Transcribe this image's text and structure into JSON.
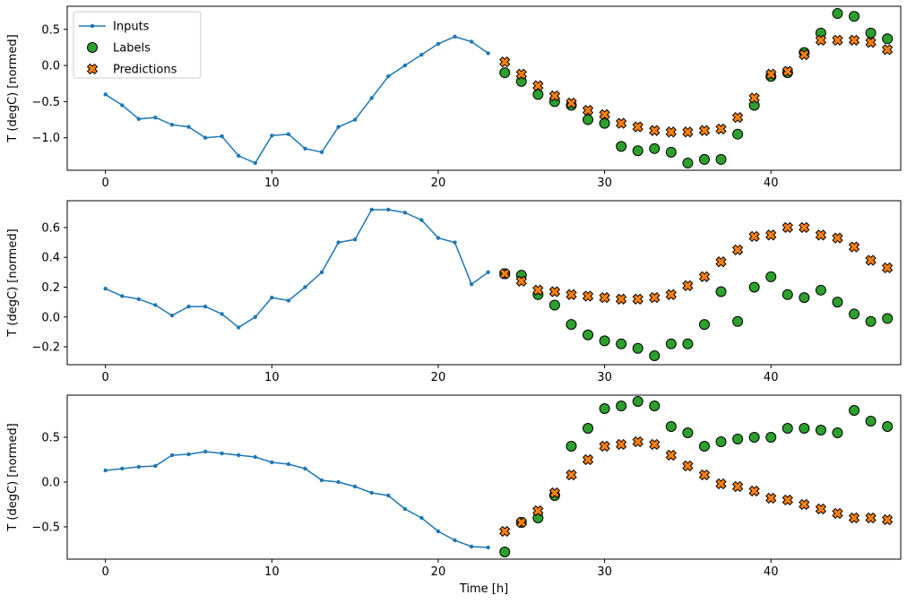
{
  "figure": {
    "background": "#ffffff",
    "spine_color": "#000000",
    "legend": {
      "position": "upper-left",
      "entries": [
        {
          "label": "Inputs",
          "marker": "line-dot",
          "color": "#1f77b4"
        },
        {
          "label": "Labels",
          "marker": "circle",
          "color": "#2ca02c"
        },
        {
          "label": "Predictions",
          "marker": "x",
          "color": "#ff7f0e"
        }
      ]
    }
  },
  "chart_data": [
    {
      "type": "line+scatter",
      "title": "",
      "ylabel": "T (degC) [normed]",
      "xlabel": "",
      "xlim": [
        -2.3,
        47.8
      ],
      "ylim": [
        -1.45,
        0.82
      ],
      "xticks": [
        0,
        10,
        20,
        30,
        40
      ],
      "yticks": [
        0.5,
        0.0,
        -0.5,
        -1.0
      ],
      "grid": false,
      "series": [
        {
          "name": "Inputs",
          "type": "line",
          "color": "#1f77b4",
          "x": [
            0,
            1,
            2,
            3,
            4,
            5,
            6,
            7,
            8,
            9,
            10,
            11,
            12,
            13,
            14,
            15,
            16,
            17,
            18,
            19,
            20,
            21,
            22,
            23
          ],
          "y": [
            -0.4,
            -0.55,
            -0.74,
            -0.72,
            -0.82,
            -0.85,
            -1.0,
            -0.98,
            -1.25,
            -1.35,
            -0.97,
            -0.95,
            -1.15,
            -1.2,
            -0.85,
            -0.75,
            -0.45,
            -0.15,
            0.0,
            0.15,
            0.3,
            0.4,
            0.33,
            0.17
          ]
        },
        {
          "name": "Labels",
          "type": "scatter-circle",
          "color": "#2ca02c",
          "x": [
            24,
            25,
            26,
            27,
            28,
            29,
            30,
            31,
            32,
            33,
            34,
            35,
            36,
            37,
            38,
            39,
            40,
            41,
            42,
            43,
            44,
            45,
            46,
            47
          ],
          "y": [
            -0.1,
            -0.22,
            -0.4,
            -0.5,
            -0.55,
            -0.75,
            -0.8,
            -1.12,
            -1.18,
            -1.15,
            -1.2,
            -1.35,
            -1.3,
            -1.3,
            -0.95,
            -0.55,
            -0.15,
            -0.1,
            0.18,
            0.45,
            0.72,
            0.68,
            0.45,
            0.37
          ]
        },
        {
          "name": "Predictions",
          "type": "scatter-x",
          "color": "#ff7f0e",
          "x": [
            24,
            25,
            26,
            27,
            28,
            29,
            30,
            31,
            32,
            33,
            34,
            35,
            36,
            37,
            38,
            39,
            40,
            41,
            42,
            43,
            44,
            45,
            46,
            47
          ],
          "y": [
            0.05,
            -0.12,
            -0.28,
            -0.42,
            -0.52,
            -0.62,
            -0.68,
            -0.8,
            -0.85,
            -0.9,
            -0.92,
            -0.92,
            -0.9,
            -0.88,
            -0.72,
            -0.45,
            -0.12,
            -0.08,
            0.15,
            0.35,
            0.35,
            0.35,
            0.32,
            0.22
          ]
        }
      ]
    },
    {
      "type": "line+scatter",
      "title": "",
      "ylabel": "T (degC) [normed]",
      "xlabel": "",
      "xlim": [
        -2.3,
        47.8
      ],
      "ylim": [
        -0.32,
        0.78
      ],
      "xticks": [
        0,
        10,
        20,
        30,
        40
      ],
      "yticks": [
        0.6,
        0.4,
        0.2,
        0.0,
        -0.2
      ],
      "grid": false,
      "series": [
        {
          "name": "Inputs",
          "type": "line",
          "color": "#1f77b4",
          "x": [
            0,
            1,
            2,
            3,
            4,
            5,
            6,
            7,
            8,
            9,
            10,
            11,
            12,
            13,
            14,
            15,
            16,
            17,
            18,
            19,
            20,
            21,
            22,
            23
          ],
          "y": [
            0.19,
            0.14,
            0.12,
            0.08,
            0.01,
            0.07,
            0.07,
            0.02,
            -0.07,
            0.0,
            0.13,
            0.11,
            0.2,
            0.3,
            0.5,
            0.52,
            0.72,
            0.72,
            0.7,
            0.65,
            0.53,
            0.5,
            0.22,
            0.3
          ]
        },
        {
          "name": "Labels",
          "type": "scatter-circle",
          "color": "#2ca02c",
          "x": [
            24,
            25,
            26,
            27,
            28,
            29,
            30,
            31,
            32,
            33,
            34,
            35,
            36,
            37,
            38,
            39,
            40,
            41,
            42,
            43,
            44,
            45,
            46,
            47
          ],
          "y": [
            0.29,
            0.28,
            0.15,
            0.08,
            -0.05,
            -0.12,
            -0.16,
            -0.18,
            -0.21,
            -0.26,
            -0.18,
            -0.18,
            -0.05,
            0.17,
            -0.03,
            0.2,
            0.27,
            0.15,
            0.13,
            0.18,
            0.1,
            0.02,
            -0.03,
            -0.01
          ]
        },
        {
          "name": "Predictions",
          "type": "scatter-x",
          "color": "#ff7f0e",
          "x": [
            24,
            25,
            26,
            27,
            28,
            29,
            30,
            31,
            32,
            33,
            34,
            35,
            36,
            37,
            38,
            39,
            40,
            41,
            42,
            43,
            44,
            45,
            46,
            47
          ],
          "y": [
            0.29,
            0.24,
            0.18,
            0.17,
            0.15,
            0.14,
            0.13,
            0.12,
            0.12,
            0.13,
            0.15,
            0.21,
            0.27,
            0.37,
            0.45,
            0.54,
            0.55,
            0.6,
            0.6,
            0.55,
            0.53,
            0.47,
            0.38,
            0.33
          ]
        }
      ]
    },
    {
      "type": "line+scatter",
      "title": "",
      "ylabel": "T (degC) [normed]",
      "xlabel": "Time [h]",
      "xlim": [
        -2.3,
        47.8
      ],
      "ylim": [
        -0.86,
        0.97
      ],
      "xticks": [
        0,
        10,
        20,
        30,
        40
      ],
      "yticks": [
        0.5,
        0.0,
        -0.5
      ],
      "grid": false,
      "series": [
        {
          "name": "Inputs",
          "type": "line",
          "color": "#1f77b4",
          "x": [
            0,
            1,
            2,
            3,
            4,
            5,
            6,
            7,
            8,
            9,
            10,
            11,
            12,
            13,
            14,
            15,
            16,
            17,
            18,
            19,
            20,
            21,
            22,
            23
          ],
          "y": [
            0.13,
            0.15,
            0.17,
            0.18,
            0.3,
            0.31,
            0.34,
            0.32,
            0.3,
            0.28,
            0.22,
            0.2,
            0.15,
            0.02,
            0.0,
            -0.05,
            -0.12,
            -0.15,
            -0.3,
            -0.4,
            -0.55,
            -0.65,
            -0.72,
            -0.73
          ]
        },
        {
          "name": "Labels",
          "type": "scatter-circle",
          "color": "#2ca02c",
          "x": [
            24,
            25,
            26,
            27,
            28,
            29,
            30,
            31,
            32,
            33,
            34,
            35,
            36,
            37,
            38,
            39,
            40,
            41,
            42,
            43,
            44,
            45,
            46,
            47
          ],
          "y": [
            -0.78,
            -0.45,
            -0.4,
            -0.15,
            0.4,
            0.6,
            0.82,
            0.85,
            0.9,
            0.85,
            0.62,
            0.55,
            0.4,
            0.45,
            0.48,
            0.5,
            0.5,
            0.6,
            0.6,
            0.58,
            0.55,
            0.8,
            0.68,
            0.62
          ]
        },
        {
          "name": "Predictions",
          "type": "scatter-x",
          "color": "#ff7f0e",
          "x": [
            24,
            25,
            26,
            27,
            28,
            29,
            30,
            31,
            32,
            33,
            34,
            35,
            36,
            37,
            38,
            39,
            40,
            41,
            42,
            43,
            44,
            45,
            46,
            47
          ],
          "y": [
            -0.55,
            -0.45,
            -0.32,
            -0.12,
            0.08,
            0.25,
            0.4,
            0.42,
            0.45,
            0.42,
            0.3,
            0.18,
            0.08,
            -0.02,
            -0.05,
            -0.1,
            -0.18,
            -0.2,
            -0.25,
            -0.3,
            -0.35,
            -0.4,
            -0.4,
            -0.42
          ]
        }
      ]
    }
  ]
}
